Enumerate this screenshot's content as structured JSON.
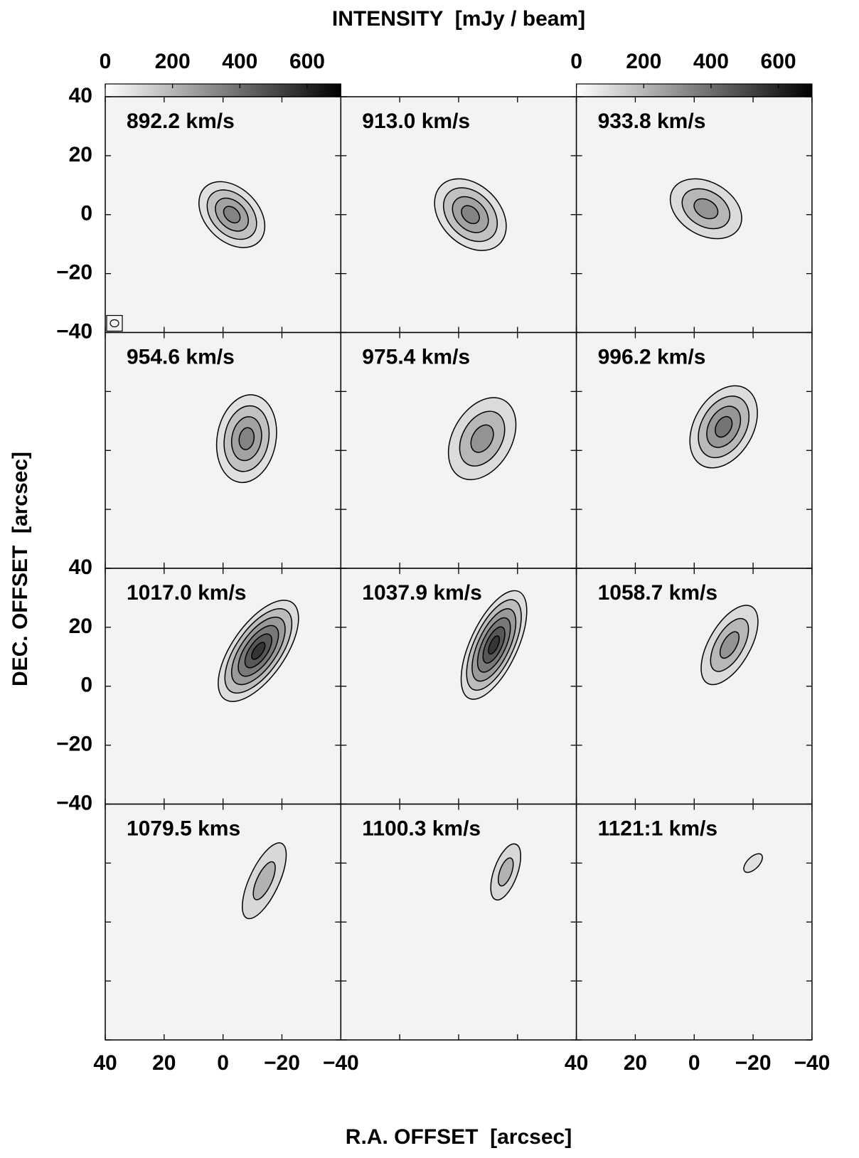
{
  "chart_data": {
    "type": "channel-map",
    "title": "INTENSITY  [mJy / beam]",
    "xlabel": "R.A. OFFSET  [arcsec]",
    "ylabel": "DEC. OFFSET  [arcsec]",
    "xlim": [
      40,
      -40
    ],
    "xticks": [
      40,
      20,
      0,
      {
        "value": -20,
        "label": "−20"
      },
      {
        "value": -40,
        "label": "−40"
      }
    ],
    "ylim": [
      -40,
      40
    ],
    "yticks": [
      {
        "value": -40,
        "label": "−40"
      },
      {
        "value": -20,
        "label": "−20"
      },
      0,
      20,
      40
    ],
    "colorbar": {
      "lim": [
        0,
        700
      ],
      "ticks": [
        0,
        200,
        400,
        600
      ]
    },
    "panels": [
      {
        "label": "892.2 km/s",
        "ra": -3,
        "dec": 0,
        "peak": 400,
        "major": 26,
        "minor": 18,
        "pa": 45
      },
      {
        "label": "913.0 km/s",
        "ra": -4,
        "dec": 0,
        "peak": 400,
        "major": 28,
        "minor": 20,
        "pa": 45
      },
      {
        "label": "933.8 km/s",
        "ra": -4,
        "dec": 2,
        "peak": 350,
        "major": 26,
        "minor": 18,
        "pa": 60
      },
      {
        "label": "954.6 km/s",
        "ra": -8,
        "dec": 4,
        "peak": 400,
        "major": 30,
        "minor": 20,
        "pa": -10
      },
      {
        "label": "975.4 km/s",
        "ra": -8,
        "dec": 4,
        "peak": 350,
        "major": 30,
        "minor": 20,
        "pa": -30
      },
      {
        "label": "996.2 km/s",
        "ra": -10,
        "dec": 8,
        "peak": 450,
        "major": 30,
        "minor": 20,
        "pa": -30
      },
      {
        "label": "1017.0 km/s",
        "ra": -12,
        "dec": 12,
        "peak": 650,
        "major": 40,
        "minor": 18,
        "pa": -35
      },
      {
        "label": "1037.9 km/s",
        "ra": -12,
        "dec": 14,
        "peak": 650,
        "major": 40,
        "minor": 16,
        "pa": -25
      },
      {
        "label": "1058.7 km/s",
        "ra": -12,
        "dec": 14,
        "peak": 350,
        "major": 30,
        "minor": 14,
        "pa": -30
      },
      {
        "label": "1079.5 kms",
        "ra": -14,
        "dec": 14,
        "peak": 250,
        "major": 28,
        "minor": 10,
        "pa": -25
      },
      {
        "label": "1100.3 km/s",
        "ra": -16,
        "dec": 17,
        "peak": 250,
        "major": 20,
        "minor": 8,
        "pa": -20
      },
      {
        "label": "1121:1 km/s",
        "ra": -20,
        "dec": 20,
        "peak": 100,
        "major": 8,
        "minor": 4,
        "pa": -45
      }
    ]
  }
}
